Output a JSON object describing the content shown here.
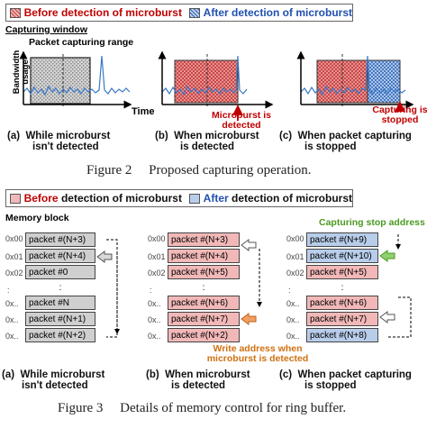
{
  "fig2": {
    "legend_before_bold": "Before",
    "legend_before_rest": " detection of microburst",
    "legend_after_bold": "After",
    "legend_after_rest": " detection of microburst",
    "capturing_window": "Capturing window",
    "packet_capturing_range": "Packet capturing range",
    "y_axis_label_1": "Bandwidth",
    "y_axis_label_2": "usage",
    "x_axis_label": "Time",
    "annotation_detected_1": "Microburst is",
    "annotation_detected_2": "detected",
    "annotation_stopped_1": "Capturing is",
    "annotation_stopped_2": "stopped",
    "sub_a_1": "(a)  While microburst",
    "sub_a_2": "isn't detected",
    "sub_b_1": "(b)  When microburst",
    "sub_b_2": "is detected",
    "sub_c_1": "(c)  When packet capturing",
    "sub_c_2": "is stopped",
    "caption": "Figure 2     Proposed capturing operation."
  },
  "fig3": {
    "legend_before_bold": "Before",
    "legend_before_rest": " detection of microburst",
    "legend_after_bold": "After",
    "legend_after_rest": " detection of microburst",
    "memory_block": "Memory block",
    "capturing_stop_address": "Capturing stop address",
    "write_address_1": "Write address when",
    "write_address_2": "microburst is detected",
    "addr_labels": [
      "0x00",
      "0x01",
      "0x02",
      ":",
      "0x..",
      "0x..",
      "0x.."
    ],
    "col_a": [
      "packet #(N+3)",
      "packet #(N+4)",
      "packet #0",
      ":",
      "packet #N",
      "packet #(N+1)",
      "packet #(N+2)"
    ],
    "col_b": [
      "packet #(N+3)",
      "packet #(N+4)",
      "packet #(N+5)",
      ":",
      "packet #(N+6)",
      "packet #(N+7)",
      "packet #(N+2)"
    ],
    "col_c": [
      "packet #(N+9)",
      "packet #(N+10)",
      "packet #(N+5)",
      ":",
      "packet #(N+6)",
      "packet #(N+7)",
      "packet #(N+8)"
    ],
    "sub_a_1": "(a)  While microburst",
    "sub_a_2": "isn't detected",
    "sub_b_1": "(b)  When microburst",
    "sub_b_2": "is detected",
    "sub_c_1": "(c)  When packet capturing",
    "sub_c_2": "is stopped",
    "caption": "Figure 3     Details of memory control for ring buffer."
  },
  "colors": {
    "before_red": "#c00000",
    "after_blue": "#2050b0",
    "line_blue": "#3a78c8",
    "cell_gray": "#cfcfcf",
    "cell_pink": "#f2b8b8",
    "cell_blue": "#b8cdea",
    "arrow_orange": "#f0a060",
    "arrow_green": "#90d070"
  }
}
